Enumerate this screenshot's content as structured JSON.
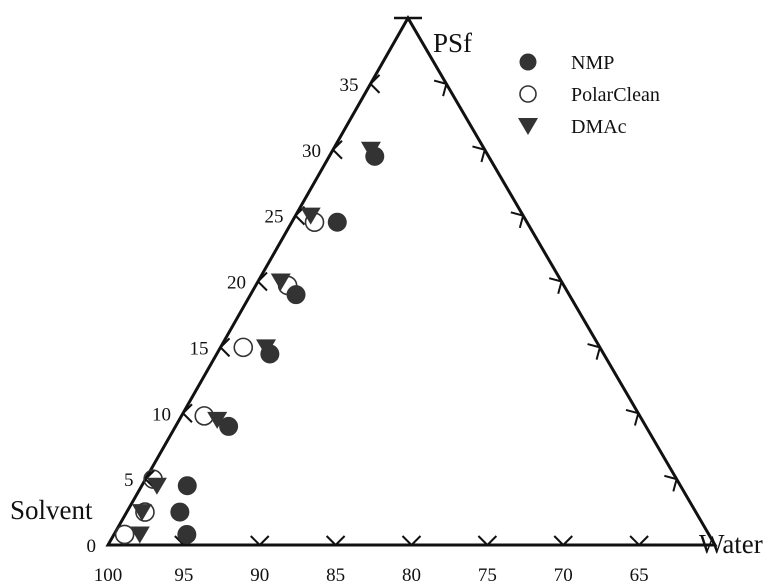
{
  "chart_data": {
    "type": "scatter",
    "subtype": "ternary",
    "vertices": {
      "top": "PSf",
      "left": "Solvent",
      "right": "Water"
    },
    "axes": {
      "psf": {
        "min": 0,
        "max": 40,
        "tick_labels": [
          "0",
          "5",
          "10",
          "15",
          "20",
          "25",
          "30",
          "35"
        ]
      },
      "solvent": {
        "min": 60,
        "max": 100,
        "tick_labels": [
          "100",
          "95",
          "90",
          "85",
          "80",
          "75",
          "70",
          "65"
        ]
      }
    },
    "grid": false,
    "legend_position": "top-right",
    "series": [
      {
        "name": "NMP",
        "marker": "filled-circle",
        "color": "#333333",
        "points": [
          {
            "psf": 0.8,
            "solvent": 94.4
          },
          {
            "psf": 2.5,
            "solvent": 94.0
          },
          {
            "psf": 4.5,
            "solvent": 92.5
          },
          {
            "psf": 9.0,
            "solvent": 87.5
          },
          {
            "psf": 14.5,
            "solvent": 82.0
          },
          {
            "psf": 19.0,
            "solvent": 78.0
          },
          {
            "psf": 24.5,
            "solvent": 72.5
          },
          {
            "psf": 29.5,
            "solvent": 67.5
          }
        ]
      },
      {
        "name": "PolarClean",
        "marker": "open-circle",
        "color": "#333333",
        "points": [
          {
            "psf": 0.8,
            "solvent": 98.5
          },
          {
            "psf": 2.5,
            "solvent": 96.3
          },
          {
            "psf": 5.0,
            "solvent": 94.5
          },
          {
            "psf": 9.8,
            "solvent": 88.7
          },
          {
            "psf": 15.0,
            "solvent": 83.5
          },
          {
            "psf": 19.7,
            "solvent": 78.2
          },
          {
            "psf": 24.5,
            "solvent": 74.0
          }
        ]
      },
      {
        "name": "DMAc",
        "marker": "filled-triangle-down",
        "color": "#333333",
        "points": [
          {
            "psf": 0.8,
            "solvent": 97.5
          },
          {
            "psf": 2.5,
            "solvent": 96.5
          },
          {
            "psf": 4.5,
            "solvent": 94.5
          },
          {
            "psf": 9.5,
            "solvent": 88.0
          },
          {
            "psf": 15.0,
            "solvent": 82.0
          },
          {
            "psf": 20.0,
            "solvent": 78.5
          },
          {
            "psf": 25.0,
            "solvent": 74.0
          },
          {
            "psf": 30.0,
            "solvent": 67.5
          }
        ]
      }
    ]
  }
}
